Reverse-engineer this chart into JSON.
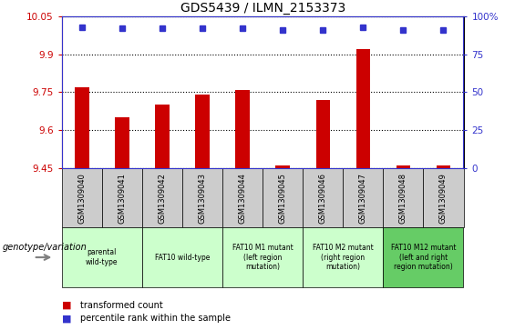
{
  "title": "GDS5439 / ILMN_2153373",
  "samples": [
    "GSM1309040",
    "GSM1309041",
    "GSM1309042",
    "GSM1309043",
    "GSM1309044",
    "GSM1309045",
    "GSM1309046",
    "GSM1309047",
    "GSM1309048",
    "GSM1309049"
  ],
  "transformed_count": [
    9.77,
    9.65,
    9.7,
    9.74,
    9.76,
    9.46,
    9.72,
    9.92,
    9.46,
    9.46
  ],
  "percentile_rank": [
    93,
    92,
    92,
    92,
    92,
    91,
    91,
    93,
    91,
    91
  ],
  "ylim_left": [
    9.45,
    10.05
  ],
  "ylim_right": [
    0,
    100
  ],
  "yticks_left": [
    9.45,
    9.6,
    9.75,
    9.9,
    10.05
  ],
  "ytick_labels_left": [
    "9.45",
    "9.6",
    "9.75",
    "9.9",
    "10.05"
  ],
  "yticks_right": [
    0,
    25,
    50,
    75,
    100
  ],
  "ytick_labels_right": [
    "0",
    "25",
    "50",
    "75",
    "100%"
  ],
  "bar_color": "#cc0000",
  "dot_color": "#3333cc",
  "groups": [
    {
      "label": "parental\nwild-type",
      "start": 0,
      "end": 2,
      "color": "#ccffcc"
    },
    {
      "label": "FAT10 wild-type",
      "start": 2,
      "end": 4,
      "color": "#ccffcc"
    },
    {
      "label": "FAT10 M1 mutant\n(left region\nmutation)",
      "start": 4,
      "end": 6,
      "color": "#ccffcc"
    },
    {
      "label": "FAT10 M2 mutant\n(right region\nmutation)",
      "start": 6,
      "end": 8,
      "color": "#ccffcc"
    },
    {
      "label": "FAT10 M12 mutant\n(left and right\nregion mutation)",
      "start": 8,
      "end": 10,
      "color": "#66cc66"
    }
  ],
  "sample_bg_color": "#cccccc",
  "grid_color": "#555555",
  "legend_red_label": "transformed count",
  "legend_blue_label": "percentile rank within the sample",
  "genotype_label": "genotype/variation"
}
